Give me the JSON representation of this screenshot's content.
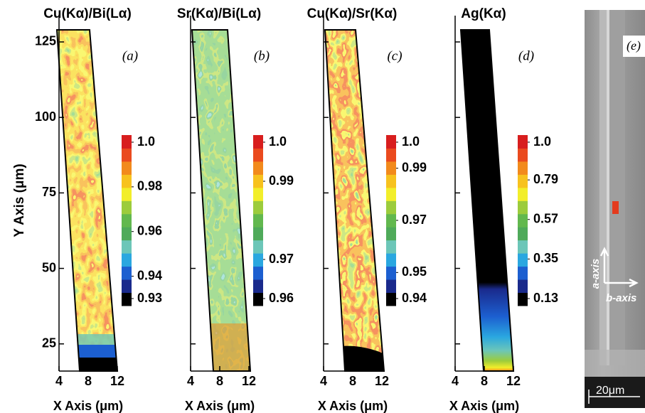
{
  "chart_data": [
    {
      "type": "map",
      "title": "Cu(Kα)/Bi(Lα)",
      "panel_label": "(a)",
      "xlabel": "X Axis (μm)",
      "ylabel": "Y Axis (μm)",
      "xlim": [
        4,
        12
      ],
      "xticks": [
        4,
        8,
        12
      ],
      "ylim": [
        16,
        129
      ],
      "yticks": [
        25,
        50,
        75,
        100,
        125
      ],
      "ytick_labels": true,
      "colorbar_ticks": [
        {
          "value": 1.0,
          "label": "1.0"
        },
        0.98,
        0.96,
        0.94,
        0.93
      ],
      "colorbar_colors": [
        "#000000",
        "#1a2a8c",
        "#1c5fd0",
        "#2aa7e0",
        "#6cc6b8",
        "#4faa5a",
        "#62b84e",
        "#9ccc3c",
        "#f2ee2a",
        "#f7c21e",
        "#f28a1c",
        "#ea4a1e",
        "#d81e1e"
      ]
    },
    {
      "type": "map",
      "title": "Sr(Kα)/Bi(Lα)",
      "panel_label": "(b)",
      "xlabel": "X Axis (μm)",
      "xlim": [
        4,
        12
      ],
      "xticks": [
        4,
        8,
        12
      ],
      "ylim": [
        16,
        129
      ],
      "yticks": [
        25,
        50,
        75,
        100,
        125
      ],
      "ytick_labels": false,
      "colorbar_ticks": [
        {
          "value": 1.0,
          "label": "1.0"
        },
        0.99,
        0.97,
        0.96
      ],
      "colorbar_colors": [
        "#000000",
        "#1a2a8c",
        "#1c5fd0",
        "#2aa7e0",
        "#6cc6b8",
        "#4faa5a",
        "#62b84e",
        "#9ccc3c",
        "#f2ee2a",
        "#f7c21e",
        "#f28a1c",
        "#ea4a1e",
        "#d81e1e"
      ]
    },
    {
      "type": "map",
      "title": "Cu(Kα)/Sr(Kα)",
      "panel_label": "(c)",
      "xlabel": "X Axis (μm)",
      "xlim": [
        4,
        12
      ],
      "xticks": [
        4,
        8,
        12
      ],
      "ylim": [
        16,
        129
      ],
      "yticks": [
        25,
        50,
        75,
        100,
        125
      ],
      "ytick_labels": false,
      "colorbar_ticks": [
        {
          "value": 1.0,
          "label": "1.0"
        },
        0.99,
        0.97,
        0.95,
        0.94
      ],
      "colorbar_colors": [
        "#000000",
        "#1a2a8c",
        "#1c5fd0",
        "#2aa7e0",
        "#6cc6b8",
        "#4faa5a",
        "#62b84e",
        "#9ccc3c",
        "#f2ee2a",
        "#f7c21e",
        "#f28a1c",
        "#ea4a1e",
        "#d81e1e"
      ]
    },
    {
      "type": "map",
      "title": "Ag(Kα)",
      "panel_label": "(d)",
      "xlabel": "X Axis (μm)",
      "xlim": [
        4,
        12
      ],
      "xticks": [
        4,
        8,
        12
      ],
      "ylim": [
        16,
        129
      ],
      "yticks": [
        25,
        50,
        75,
        100,
        125
      ],
      "ytick_labels": false,
      "colorbar_ticks": [
        {
          "value": 1.0,
          "label": "1.0"
        },
        0.79,
        0.57,
        0.35,
        0.13
      ],
      "colorbar_colors": [
        "#000000",
        "#1a2a8c",
        "#1c5fd0",
        "#2aa7e0",
        "#6cc6b8",
        "#4faa5a",
        "#62b84e",
        "#9ccc3c",
        "#f2ee2a",
        "#f7c21e",
        "#f28a1c",
        "#ea4a1e",
        "#d81e1e"
      ]
    }
  ],
  "sem_image": {
    "panel_label": "(e)",
    "axis_a": "a-axis",
    "axis_b": "b-axis",
    "scale_bar": "20μm"
  }
}
